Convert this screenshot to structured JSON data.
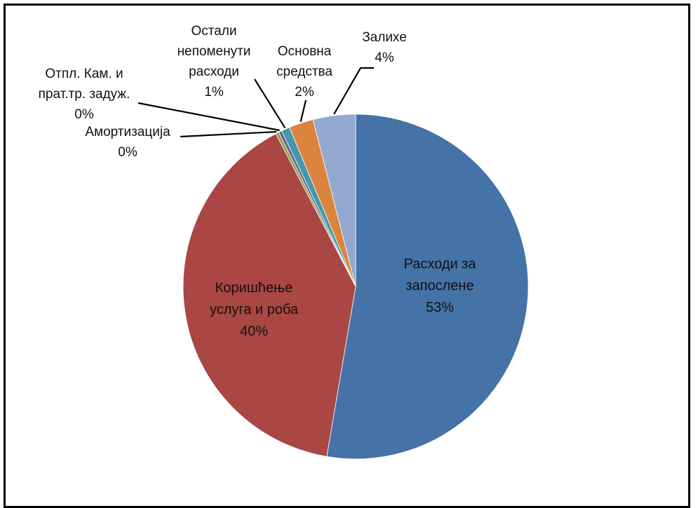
{
  "chart_data": {
    "type": "pie",
    "title": "",
    "slices": [
      {
        "lines": [
          "Расходи за",
          "запослене"
        ],
        "percent_label": "53%",
        "value": 53.0,
        "color": "#4572A7"
      },
      {
        "lines": [
          "Коришћење",
          "услуга и роба"
        ],
        "percent_label": "40%",
        "value": 39.9,
        "color": "#AA4643"
      },
      {
        "lines": [
          "Амортизација"
        ],
        "percent_label": "0%",
        "value": 0.3,
        "color": "#89A54E"
      },
      {
        "lines": [
          "Отпл. Кам. и",
          "прат.тр. задуж."
        ],
        "percent_label": "0%",
        "value": 0.3,
        "color": "#71588F"
      },
      {
        "lines": [
          "Остали",
          "непоменути",
          "расходи"
        ],
        "percent_label": "1%",
        "value": 0.8,
        "color": "#4198AF"
      },
      {
        "lines": [
          "Основна",
          "средства"
        ],
        "percent_label": "2%",
        "value": 2.3,
        "color": "#DB843D"
      },
      {
        "lines": [
          "Залихе"
        ],
        "percent_label": "4%",
        "value": 4.0,
        "color": "#93A9CF"
      }
    ],
    "legend": "none",
    "labels_placement": "inside for large slices, outside with leader lines for small slices"
  }
}
